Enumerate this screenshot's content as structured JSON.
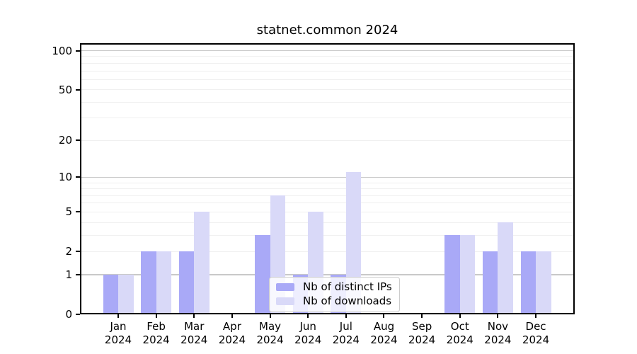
{
  "title": "statnet.common 2024",
  "chart_data": {
    "type": "bar",
    "title": "statnet.common 2024",
    "categories": [
      "Jan 2024",
      "Feb 2024",
      "Mar 2024",
      "Apr 2024",
      "May 2024",
      "Jun 2024",
      "Jul 2024",
      "Aug 2024",
      "Sep 2024",
      "Oct 2024",
      "Nov 2024",
      "Dec 2024"
    ],
    "months": [
      "Jan",
      "Feb",
      "Mar",
      "Apr",
      "May",
      "Jun",
      "Jul",
      "Aug",
      "Sep",
      "Oct",
      "Nov",
      "Dec"
    ],
    "x_tick_second_line": "2024",
    "series": [
      {
        "name": "Nb of distinct IPs",
        "color": "#a9a9f7",
        "values": [
          1,
          2,
          2,
          0,
          3,
          1,
          1,
          0,
          0,
          3,
          2,
          2
        ]
      },
      {
        "name": "Nb of downloads",
        "color": "#d9d9f8",
        "values": [
          1,
          2,
          5,
          0,
          7,
          5,
          11,
          0,
          0,
          3,
          4,
          2
        ]
      }
    ],
    "xlabel": "",
    "ylabel": "",
    "yscale": "log1p",
    "ylim": [
      0,
      113
    ],
    "yticks": [
      100,
      50,
      20,
      10,
      5,
      2,
      1,
      0
    ],
    "minor_gridlines": [
      2,
      3,
      4,
      5,
      6,
      7,
      8,
      9,
      20,
      30,
      40,
      50,
      60,
      70,
      80,
      90
    ],
    "major_gridlines": [
      1,
      10,
      100
    ],
    "grid": true,
    "legend_position": "lower center",
    "colors": {
      "background": "#ffffff",
      "spine": "#000000",
      "major_grid": "#c9c9c9",
      "minor_grid": "#f0f0f0",
      "legend_border": "#cccccc"
    }
  }
}
